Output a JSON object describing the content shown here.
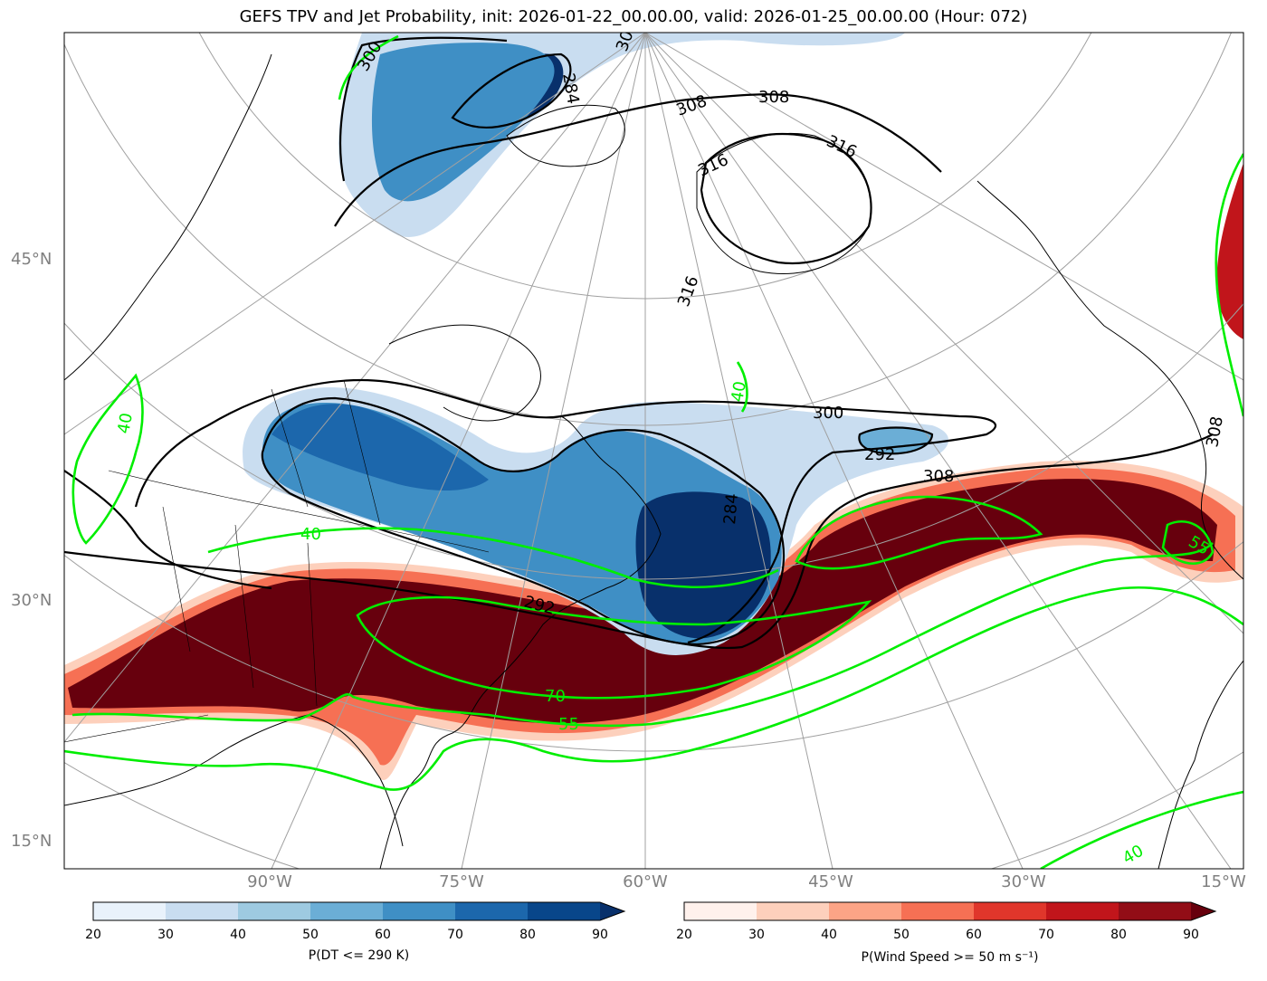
{
  "title": "GEFS TPV and Jet Probability, init: 2026-01-22_00.00.00, valid: 2026-01-25_00.00.00 (Hour: 072)",
  "lat_labels": [
    "45°N",
    "30°N",
    "15°N"
  ],
  "lon_labels": [
    "90°W",
    "75°W",
    "60°W",
    "45°W",
    "30°W",
    "15°W"
  ],
  "dt_contour_labels": [
    "284",
    "300",
    "308",
    "308",
    "316",
    "316",
    "316",
    "300",
    "292",
    "308",
    "284",
    "292",
    "308",
    "30"
  ],
  "jet_contour_labels": [
    "40",
    "40",
    "40",
    "70",
    "55",
    "55",
    "40"
  ],
  "colorbars": {
    "blue": {
      "title": "P(DT <= 290 K)",
      "ticks": [
        "20",
        "30",
        "40",
        "50",
        "60",
        "70",
        "80",
        "90"
      ],
      "colors": [
        "#e9f2fb",
        "#c9ddf0",
        "#9ecae1",
        "#6baed6",
        "#3f8fc5",
        "#1c67ac",
        "#08468a"
      ],
      "extend_color": "#08306b"
    },
    "red": {
      "title": "P(Wind Speed >= 50 m s⁻¹)",
      "ticks": [
        "20",
        "30",
        "40",
        "50",
        "60",
        "70",
        "80",
        "90"
      ],
      "colors": [
        "#fff1ec",
        "#fdd0bc",
        "#fca486",
        "#f67054",
        "#e0362b",
        "#c1151b",
        "#920d16"
      ],
      "extend_color": "#67000d"
    }
  },
  "colors": {
    "dt_contour": "#000000",
    "jet_contour": "#00ee00",
    "grid": "#a0a0a0"
  }
}
